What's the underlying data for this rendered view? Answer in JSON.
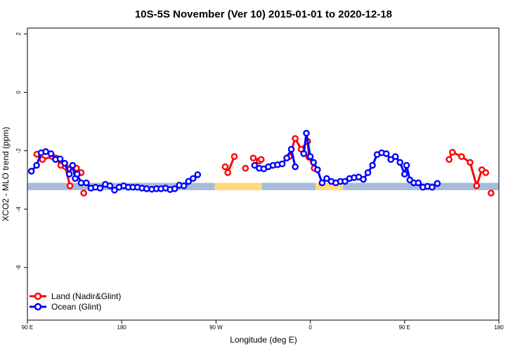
{
  "chart_data": {
    "type": "line",
    "title": "10S-5S November (Ver 10)   2015-01-01 to 2020-12-18",
    "xlabel": "Longitude (deg E)",
    "ylabel": "XCO2 - MLO trend (ppm)",
    "xlim": [
      90,
      450
    ],
    "ylim": [
      -7.8,
      2.2
    ],
    "x_ticks": [
      90,
      162,
      234,
      306,
      378,
      450
    ],
    "x_tick_labels": [
      "90 E",
      "180",
      "90 W",
      "0",
      "90 E",
      "180"
    ],
    "y_ticks": [
      2,
      0,
      -2,
      -4,
      -6
    ],
    "y_tick_labels": [
      "2",
      "0",
      "-2",
      "-4",
      "-6"
    ],
    "grid": false,
    "legend_position": "bottom-left",
    "colors": {
      "land": "#ff0000",
      "ocean": "#0000ff",
      "land_band": "#ffd97a",
      "ocean_band": "#a7bcd9"
    },
    "surface_band": {
      "y_range": [
        -3.35,
        -3.1
      ],
      "segments": [
        {
          "type": "ocean",
          "x": [
            90,
            233
          ]
        },
        {
          "type": "land",
          "x": [
            233,
            269
          ]
        },
        {
          "type": "ocean",
          "x": [
            269,
            310
          ]
        },
        {
          "type": "land",
          "x": [
            310,
            331
          ]
        },
        {
          "type": "ocean",
          "x": [
            331,
            450
          ]
        }
      ]
    },
    "series": [
      {
        "name": "Land (Nadir&Glint)",
        "color": "#ff0000",
        "segments": [
          [
            [
              97.2,
              -2.12
            ],
            [
              101.5,
              -2.3
            ],
            [
              109,
              -2.2
            ],
            [
              112,
              -2.25
            ],
            [
              115.5,
              -2.5
            ],
            [
              127.5,
              -2.6
            ],
            [
              131,
              -2.75
            ]
          ],
          [
            [
              119,
              -2.55
            ],
            [
              122.5,
              -3.2
            ]
          ],
          [
            [
              133,
              -3.45
            ]
          ],
          [
            [
              241,
              -2.55
            ],
            [
              243,
              -2.75
            ],
            [
              248,
              -2.2
            ]
          ],
          [
            [
              256.5,
              -2.6
            ]
          ],
          [
            [
              262.5,
              -2.25
            ],
            [
              267,
              -2.35
            ],
            [
              268.5,
              -2.3
            ]
          ],
          [
            [
              290,
              -2.2
            ],
            [
              294.5,
              -1.58
            ],
            [
              299,
              -1.95
            ],
            [
              304,
              -1.68
            ],
            [
              305,
              -2.22
            ],
            [
              309,
              -2.6
            ]
          ],
          [
            [
              412,
              -2.3
            ],
            [
              414.5,
              -2.05
            ],
            [
              421.5,
              -2.2
            ],
            [
              428,
              -2.4
            ],
            [
              433,
              -3.2
            ],
            [
              437,
              -2.65
            ],
            [
              440,
              -2.75
            ]
          ],
          [
            [
              444,
              -3.45
            ]
          ]
        ]
      },
      {
        "name": "Ocean (Glint)",
        "color": "#0000ff",
        "segments": [
          [
            [
              93,
              -2.7
            ],
            [
              97,
              -2.5
            ],
            [
              100.5,
              -2.07
            ],
            [
              104,
              -2.03
            ],
            [
              108,
              -2.1
            ],
            [
              111.5,
              -2.3
            ],
            [
              115,
              -2.28
            ],
            [
              118.5,
              -2.43
            ],
            [
              122,
              -2.8
            ],
            [
              124.5,
              -2.5
            ],
            [
              126.5,
              -2.95
            ],
            [
              128,
              -2.8
            ],
            [
              131,
              -3.1
            ],
            [
              135,
              -3.1
            ],
            [
              138.5,
              -3.28
            ],
            [
              142,
              -3.25
            ],
            [
              145.5,
              -3.28
            ],
            [
              149.5,
              -3.15
            ],
            [
              153,
              -3.2
            ],
            [
              156.5,
              -3.35
            ],
            [
              160,
              -3.25
            ],
            [
              163.5,
              -3.2
            ],
            [
              167,
              -3.25
            ],
            [
              170.5,
              -3.25
            ],
            [
              174,
              -3.25
            ],
            [
              177.5,
              -3.28
            ],
            [
              181,
              -3.3
            ],
            [
              185,
              -3.32
            ],
            [
              188.5,
              -3.3
            ],
            [
              192,
              -3.3
            ],
            [
              195.5,
              -3.28
            ],
            [
              199,
              -3.33
            ],
            [
              202.5,
              -3.3
            ],
            [
              206,
              -3.18
            ],
            [
              209.5,
              -3.2
            ],
            [
              213,
              -3.05
            ],
            [
              216.5,
              -2.95
            ],
            [
              220,
              -2.82
            ]
          ],
          [
            [
              263.5,
              -2.5
            ],
            [
              267,
              -2.6
            ],
            [
              270.5,
              -2.62
            ],
            [
              274,
              -2.55
            ],
            [
              277.5,
              -2.5
            ],
            [
              281,
              -2.48
            ],
            [
              284.5,
              -2.45
            ],
            [
              288,
              -2.25
            ],
            [
              291.5,
              -1.95
            ],
            [
              294.5,
              -2.55
            ]
          ],
          [
            [
              301,
              -2.1
            ],
            [
              303,
              -1.4
            ],
            [
              306,
              -2.2
            ],
            [
              308.5,
              -2.4
            ],
            [
              311.5,
              -2.65
            ],
            [
              315,
              -3.1
            ],
            [
              318.5,
              -2.95
            ],
            [
              322,
              -3.05
            ],
            [
              325.5,
              -3.1
            ],
            [
              329,
              -3.05
            ],
            [
              332.5,
              -3.05
            ],
            [
              336,
              -2.95
            ],
            [
              339.5,
              -2.92
            ],
            [
              343,
              -2.9
            ],
            [
              346.5,
              -2.98
            ],
            [
              350,
              -2.75
            ],
            [
              353.5,
              -2.5
            ],
            [
              357,
              -2.13
            ],
            [
              360.5,
              -2.07
            ],
            [
              364,
              -2.1
            ],
            [
              367.5,
              -2.3
            ],
            [
              371,
              -2.2
            ],
            [
              374.5,
              -2.4
            ],
            [
              378,
              -2.8
            ],
            [
              379.5,
              -2.5
            ],
            [
              382,
              -3.0
            ],
            [
              385,
              -3.1
            ],
            [
              388.5,
              -3.1
            ],
            [
              392,
              -3.25
            ],
            [
              395.5,
              -3.22
            ],
            [
              399,
              -3.25
            ],
            [
              403,
              -3.12
            ]
          ]
        ]
      }
    ]
  }
}
